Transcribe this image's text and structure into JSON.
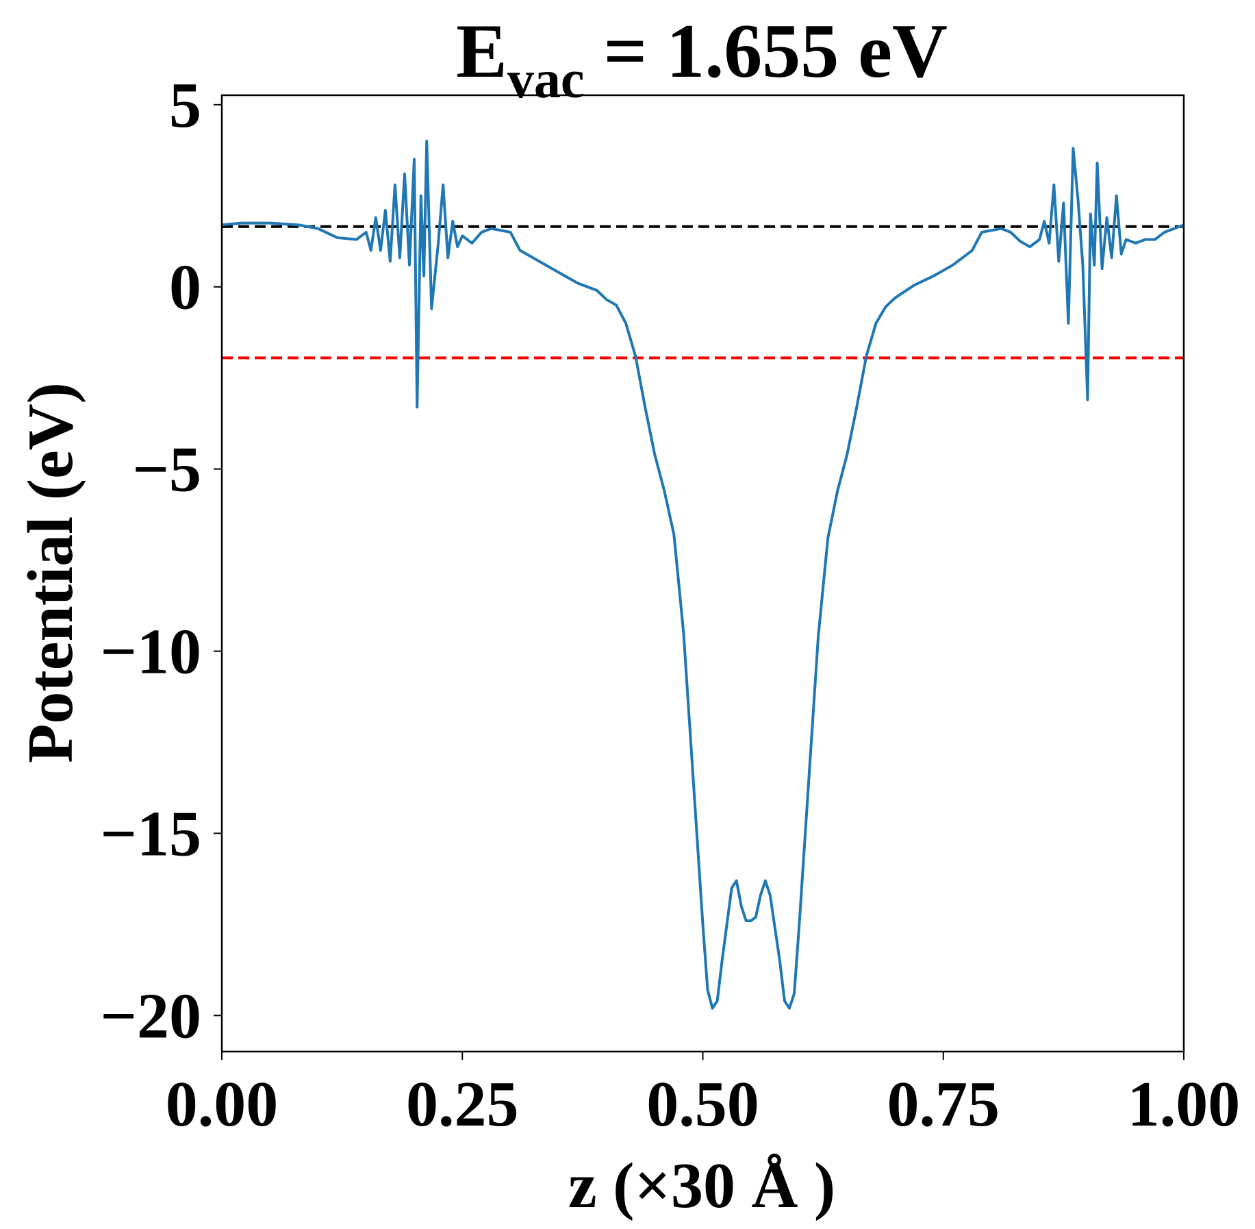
{
  "chart_data": {
    "type": "line",
    "title": {
      "main": "E",
      "sub": "vac",
      "rest": " = 1.655 eV"
    },
    "x_label": "z (×30 Å )",
    "y_label": "Potential (eV)",
    "xlim": [
      0,
      1
    ],
    "ylim": [
      -20.99,
      5.26
    ],
    "xticks": [
      {
        "value": 0,
        "label": "0.00"
      },
      {
        "value": 0.25,
        "label": "0.25"
      },
      {
        "value": 0.5,
        "label": "0.50"
      },
      {
        "value": 0.75,
        "label": "0.75"
      },
      {
        "value": 1,
        "label": "1.00"
      }
    ],
    "yticks": [
      5,
      0,
      {
        "value": -5,
        "label": "−5"
      },
      {
        "value": -10,
        "label": "−10"
      },
      {
        "value": -15,
        "label": "−15"
      },
      {
        "value": -20,
        "label": "−20"
      }
    ],
    "hlines": [
      {
        "value": 1.655,
        "color": "#000000"
      },
      {
        "value": -1.95,
        "color": "#ff0000"
      }
    ],
    "series": [
      {
        "color": "#1f77b4",
        "x": [
          0,
          0.02,
          0.05,
          0.08,
          0.1,
          0.12,
          0.14,
          0.15,
          0.155,
          0.16,
          0.165,
          0.17,
          0.175,
          0.18,
          0.185,
          0.19,
          0.195,
          0.2,
          0.203,
          0.207,
          0.21,
          0.213,
          0.218,
          0.225,
          0.23,
          0.235,
          0.24,
          0.245,
          0.25,
          0.26,
          0.27,
          0.28,
          0.29,
          0.3,
          0.31,
          0.33,
          0.35,
          0.37,
          0.39,
          0.4,
          0.41,
          0.42,
          0.43,
          0.44,
          0.45,
          0.46,
          0.47,
          0.48,
          0.49,
          0.5,
          0.505,
          0.51,
          0.515,
          0.52,
          0.53,
          0.535,
          0.54,
          0.545,
          0.55,
          0.555,
          0.56,
          0.565,
          0.57,
          0.58,
          0.585,
          0.59,
          0.595,
          0.6,
          0.61,
          0.62,
          0.63,
          0.64,
          0.65,
          0.66,
          0.67,
          0.68,
          0.69,
          0.7,
          0.72,
          0.74,
          0.76,
          0.78,
          0.79,
          0.8,
          0.81,
          0.82,
          0.83,
          0.84,
          0.85,
          0.855,
          0.86,
          0.865,
          0.87,
          0.875,
          0.88,
          0.885,
          0.89,
          0.895,
          0.9,
          0.903,
          0.907,
          0.91,
          0.915,
          0.92,
          0.925,
          0.93,
          0.935,
          0.94,
          0.95,
          0.96,
          0.97,
          0.98,
          0.99,
          1
        ],
        "values": [
          1.7,
          1.75,
          1.75,
          1.7,
          1.6,
          1.35,
          1.3,
          1.5,
          1.0,
          1.9,
          1.0,
          2.1,
          0.7,
          2.8,
          0.8,
          3.1,
          0.6,
          3.5,
          -3.3,
          2.5,
          0.3,
          4.0,
          -0.6,
          1.2,
          2.8,
          0.8,
          1.8,
          1.1,
          1.4,
          1.2,
          1.5,
          1.6,
          1.55,
          1.5,
          1.0,
          0.7,
          0.4,
          0.1,
          -0.1,
          -0.35,
          -0.5,
          -1.0,
          -1.9,
          -3.3,
          -4.6,
          -5.6,
          -6.8,
          -9.5,
          -13.5,
          -17.5,
          -19.3,
          -19.8,
          -19.6,
          -18.5,
          -16.5,
          -16.3,
          -17.0,
          -17.4,
          -17.4,
          -17.3,
          -16.7,
          -16.3,
          -16.7,
          -18.5,
          -19.6,
          -19.8,
          -19.4,
          -17.6,
          -13.6,
          -9.6,
          -6.9,
          -5.6,
          -4.6,
          -3.3,
          -1.9,
          -1.0,
          -0.55,
          -0.3,
          0.05,
          0.3,
          0.6,
          1.0,
          1.5,
          1.55,
          1.6,
          1.5,
          1.25,
          1.1,
          1.3,
          1.8,
          1.2,
          2.8,
          0.7,
          2.3,
          -1.0,
          3.8,
          2.4,
          0.6,
          -3.1,
          2.0,
          0.6,
          3.4,
          0.5,
          1.9,
          0.8,
          2.5,
          0.9,
          1.3,
          1.2,
          1.3,
          1.3,
          1.5,
          1.6,
          1.7
        ]
      }
    ]
  }
}
